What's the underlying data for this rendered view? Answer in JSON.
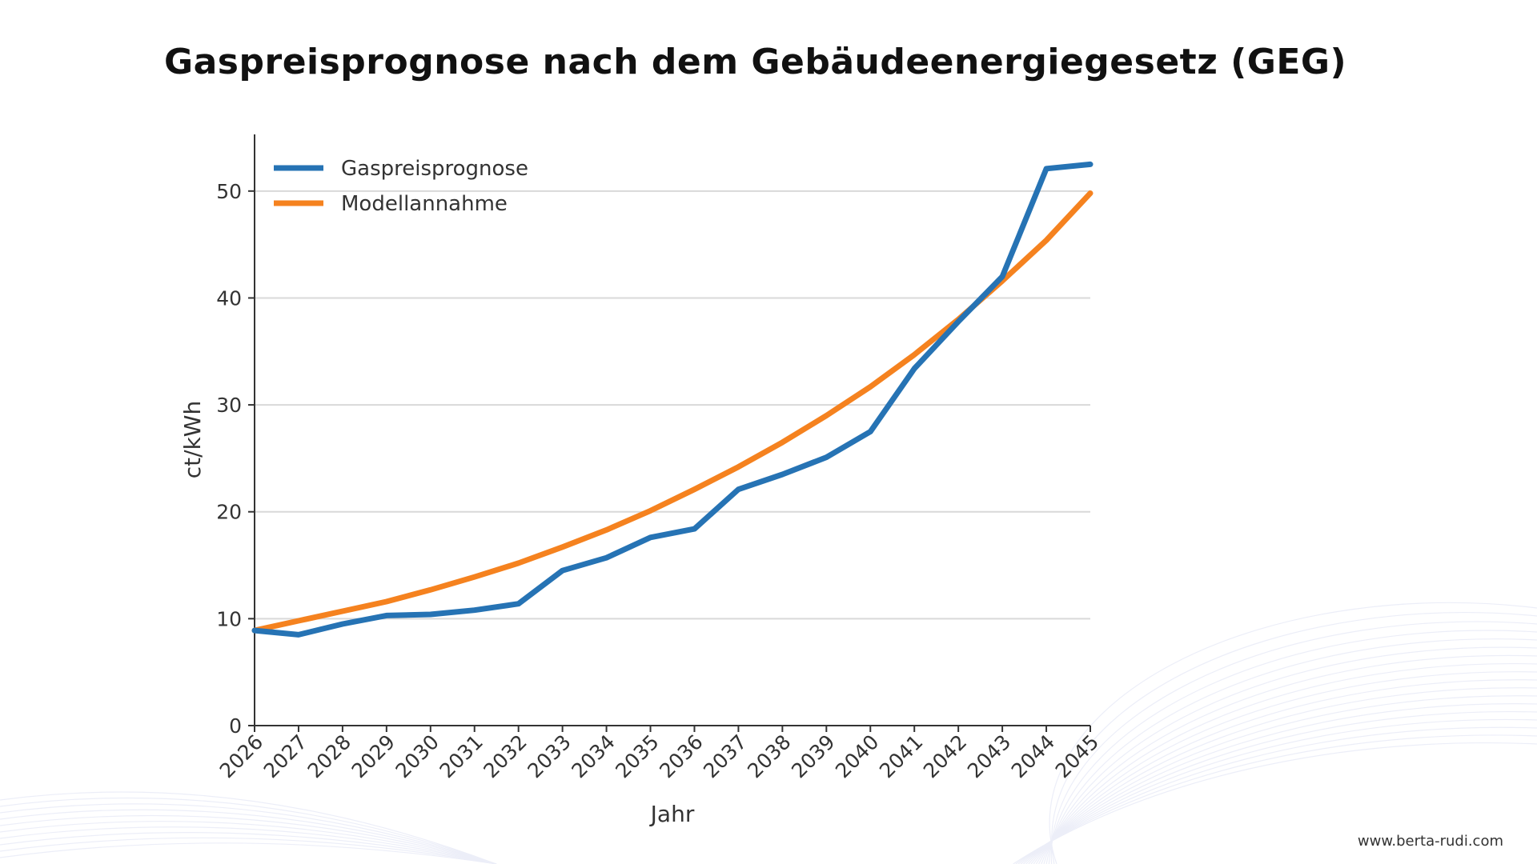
{
  "header": {
    "title": "Gaspreisprognose nach dem Gebäudeenergiegesetz (GEG)"
  },
  "footer": {
    "url": "www.berta-rudi.com"
  },
  "colors": {
    "gaspreis": "#2673b4",
    "modell": "#f5821f",
    "grid": "#d9d9d9",
    "axis": "#333333"
  },
  "chart_data": {
    "type": "line",
    "title": "",
    "xlabel": "Jahr",
    "ylabel": "ct/kWh",
    "ylim": [
      0,
      55
    ],
    "yticks": [
      0,
      10,
      20,
      30,
      40,
      50
    ],
    "grid": true,
    "legend_position": "top-left",
    "categories": [
      "2026",
      "2027",
      "2028",
      "2029",
      "2030",
      "2031",
      "2032",
      "2033",
      "2034",
      "2035",
      "2036",
      "2037",
      "2038",
      "2039",
      "2040",
      "2041",
      "2042",
      "2043",
      "2044",
      "2045"
    ],
    "series": [
      {
        "name": "Gaspreisprognose",
        "values": [
          8.9,
          8.5,
          9.5,
          10.3,
          10.4,
          10.8,
          11.4,
          14.5,
          15.7,
          17.6,
          18.4,
          22.1,
          23.5,
          25.1,
          27.5,
          33.4,
          37.8,
          42.0,
          52.1,
          52.5
        ]
      },
      {
        "name": "Modellannahme",
        "values": [
          8.9,
          9.8,
          10.7,
          11.6,
          12.7,
          13.9,
          15.2,
          16.7,
          18.3,
          20.1,
          22.1,
          24.2,
          26.5,
          29.0,
          31.7,
          34.7,
          38.0,
          41.6,
          45.4,
          49.8
        ]
      }
    ]
  }
}
